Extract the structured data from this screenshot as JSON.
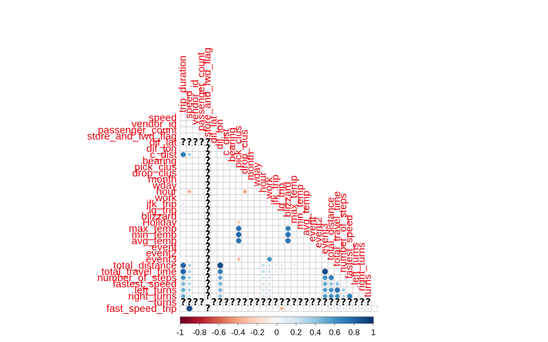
{
  "chart_data": {
    "type": "heatmap",
    "style": "corrplot-circle-lower",
    "variables": [
      "trip_duration",
      "speed",
      "vendor_id",
      "passenger_count",
      "store_and_fwd_flag",
      "dif_lat",
      "dif_lon",
      "c_dist",
      "bearing",
      "pick_clus",
      "drop_clus",
      "month",
      "wday",
      "hour",
      "work",
      "jfk_trip",
      "lg_trip",
      "blizzard",
      "Holiday",
      "max_temp",
      "min_temp",
      "avg_temp",
      "event",
      "event2",
      "event3",
      "total_distance",
      "total_travel_time",
      "number_of_steps",
      "fastest_speed",
      "left_turns",
      "right_turns",
      "fast_speed_trip"
    ],
    "row_labels": [
      "speed",
      "vendor_id",
      "passenger_count",
      "store_and_fwd_flag",
      "dif_lat",
      "dif_lon",
      "c_dist",
      "bearing",
      "pick_clus",
      "drop_clus",
      "month",
      "wday",
      "hour",
      "work",
      "jfk_trip",
      "lg_trip",
      "blizzard",
      "Holiday",
      "max_temp",
      "min_temp",
      "avg_temp",
      "event",
      "event2",
      "event3",
      "total_distance",
      "total_travel_time",
      "number_of_steps",
      "fastest_speed",
      "left_turns",
      "right_turns",
      "turns",
      "fast_speed_trip"
    ],
    "col_labels": [
      "trip_duration",
      "speed",
      "vendor_id",
      "passenger_count",
      "store_and_fwd_flag",
      "dif_lat",
      "dif_lon",
      "c_dist",
      "bearing",
      "pick_clus",
      "drop_clus",
      "month",
      "wday",
      "hour",
      "work",
      "jfk_trip",
      "lg_trip",
      "blizzard",
      "max_temp",
      "min_temp",
      "avg_temp",
      "event",
      "event2",
      "event3",
      "total_distance",
      "total_travel_time",
      "number_of_steps",
      "fastest_speed",
      "left_turns",
      "right_turns",
      "turns"
    ],
    "missing_symbol": "?",
    "missing_rows": [
      4,
      30
    ],
    "missing_cols": [
      4
    ],
    "cells": [
      [
        6,
        0,
        0.7
      ],
      [
        6,
        1,
        0.3
      ],
      [
        12,
        1,
        -0.35
      ],
      [
        12,
        10,
        -0.4
      ],
      [
        14,
        0,
        0.15
      ],
      [
        14,
        1,
        0.1
      ],
      [
        15,
        0,
        0.15
      ],
      [
        15,
        1,
        0.1
      ],
      [
        17,
        9,
        -0.25
      ],
      [
        18,
        9,
        0.75
      ],
      [
        19,
        9,
        0.8
      ],
      [
        20,
        9,
        0.75
      ],
      [
        18,
        17,
        0.7
      ],
      [
        19,
        17,
        0.75
      ],
      [
        20,
        17,
        0.75
      ],
      [
        23,
        14,
        0.6
      ],
      [
        23,
        9,
        -0.3
      ],
      [
        24,
        0,
        0.8
      ],
      [
        24,
        1,
        0.3
      ],
      [
        24,
        6,
        0.9
      ],
      [
        24,
        13,
        0.25
      ],
      [
        24,
        14,
        0.2
      ],
      [
        24,
        15,
        0.15
      ],
      [
        24,
        16,
        0.15
      ],
      [
        24,
        18,
        0.1
      ],
      [
        25,
        0,
        0.8
      ],
      [
        25,
        1,
        0.3
      ],
      [
        25,
        6,
        0.7
      ],
      [
        25,
        13,
        0.25
      ],
      [
        25,
        14,
        0.2
      ],
      [
        25,
        15,
        0.15
      ],
      [
        25,
        16,
        0.15
      ],
      [
        25,
        18,
        0.1
      ],
      [
        25,
        23,
        0.9
      ],
      [
        26,
        0,
        0.6
      ],
      [
        26,
        1,
        0.3
      ],
      [
        26,
        6,
        0.5
      ],
      [
        26,
        13,
        0.2
      ],
      [
        26,
        14,
        0.2
      ],
      [
        26,
        23,
        0.6
      ],
      [
        26,
        24,
        0.7
      ],
      [
        27,
        0,
        0.45
      ],
      [
        27,
        1,
        0.3
      ],
      [
        27,
        6,
        0.45
      ],
      [
        27,
        13,
        0.2
      ],
      [
        27,
        14,
        0.2
      ],
      [
        27,
        23,
        0.5
      ],
      [
        27,
        24,
        0.4
      ],
      [
        27,
        25,
        0.4
      ],
      [
        28,
        0,
        0.5
      ],
      [
        28,
        1,
        0.3
      ],
      [
        28,
        6,
        0.45
      ],
      [
        28,
        13,
        0.2
      ],
      [
        28,
        14,
        0.2
      ],
      [
        28,
        23,
        0.55
      ],
      [
        28,
        24,
        0.6
      ],
      [
        28,
        25,
        0.75
      ],
      [
        28,
        26,
        0.35
      ],
      [
        29,
        0,
        0.5
      ],
      [
        29,
        1,
        0.25
      ],
      [
        29,
        6,
        0.4
      ],
      [
        29,
        13,
        0.2
      ],
      [
        29,
        14,
        0.2
      ],
      [
        29,
        23,
        0.55
      ],
      [
        29,
        24,
        0.6
      ],
      [
        29,
        25,
        0.6
      ],
      [
        29,
        26,
        0.3
      ],
      [
        29,
        27,
        0.7
      ],
      [
        31,
        1,
        0.9
      ],
      [
        31,
        16,
        -0.35
      ],
      [
        31,
        20,
        0.1
      ],
      [
        31,
        24,
        0.2
      ],
      [
        31,
        25,
        0.2
      ],
      [
        31,
        26,
        0.15
      ],
      [
        31,
        27,
        0.15
      ],
      [
        31,
        28,
        0.15
      ],
      [
        31,
        29,
        0.2
      ],
      [
        31,
        30,
        0.15
      ]
    ],
    "colorbar": {
      "ticks": [
        "-1",
        "-0.8",
        "-0.6",
        "-0.4",
        "-0.2",
        "0",
        "0.2",
        "0.4",
        "0.6",
        "0.8",
        "1"
      ],
      "range": [
        -1,
        1
      ],
      "low_color": "#67001f",
      "mid_color": "#f7f7f7",
      "high_color": "#053061"
    },
    "label_color": "#e8000b",
    "grid": true
  }
}
